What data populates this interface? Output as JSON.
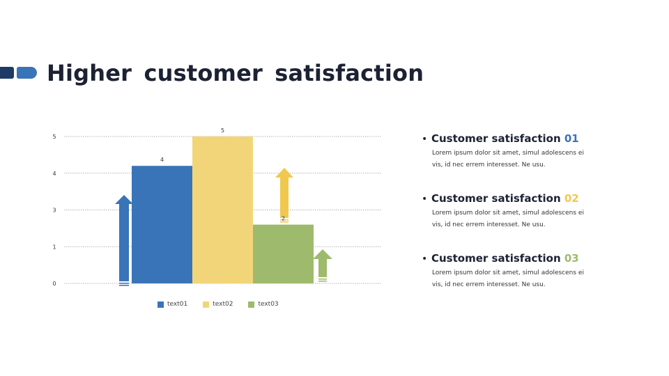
{
  "title": "Higher customer satisfaction",
  "colors": {
    "accent_dark": "#1e3a66",
    "accent": "#3a74b8",
    "blue": "#3a74b8",
    "yellow": "#f3d579",
    "yellow_arrow": "#f1c84e",
    "green": "#9eba6c",
    "heading": "#1c2233"
  },
  "chart_data": {
    "type": "bar",
    "categories": [
      "text01",
      "text02",
      "text03"
    ],
    "values": [
      4,
      5,
      2
    ],
    "data_labels": [
      "4",
      "5",
      "2"
    ],
    "y_tick_labels": [
      "0",
      "1",
      "3",
      "4",
      "5"
    ],
    "ylim": [
      0,
      5
    ],
    "grid": true,
    "legend": "bottom",
    "title": "",
    "xlabel": "",
    "ylabel": ""
  },
  "points": [
    {
      "heading": "Customer satisfaction",
      "number": "01",
      "color": "#3a74b8",
      "body": "Lorem ipsum dolor sit amet, simul adolescens ei vis, id nec errem interesset. Ne usu."
    },
    {
      "heading": "Customer satisfaction",
      "number": "02",
      "color": "#f1c84e",
      "body": "Lorem ipsum dolor sit amet, simul adolescens ei vis, id nec errem interesset. Ne usu."
    },
    {
      "heading": "Customer satisfaction",
      "number": "03",
      "color": "#9eba6c",
      "body": "Lorem ipsum dolor sit amet, simul adolescens ei vis, id nec errem interesset. Ne usu."
    }
  ]
}
